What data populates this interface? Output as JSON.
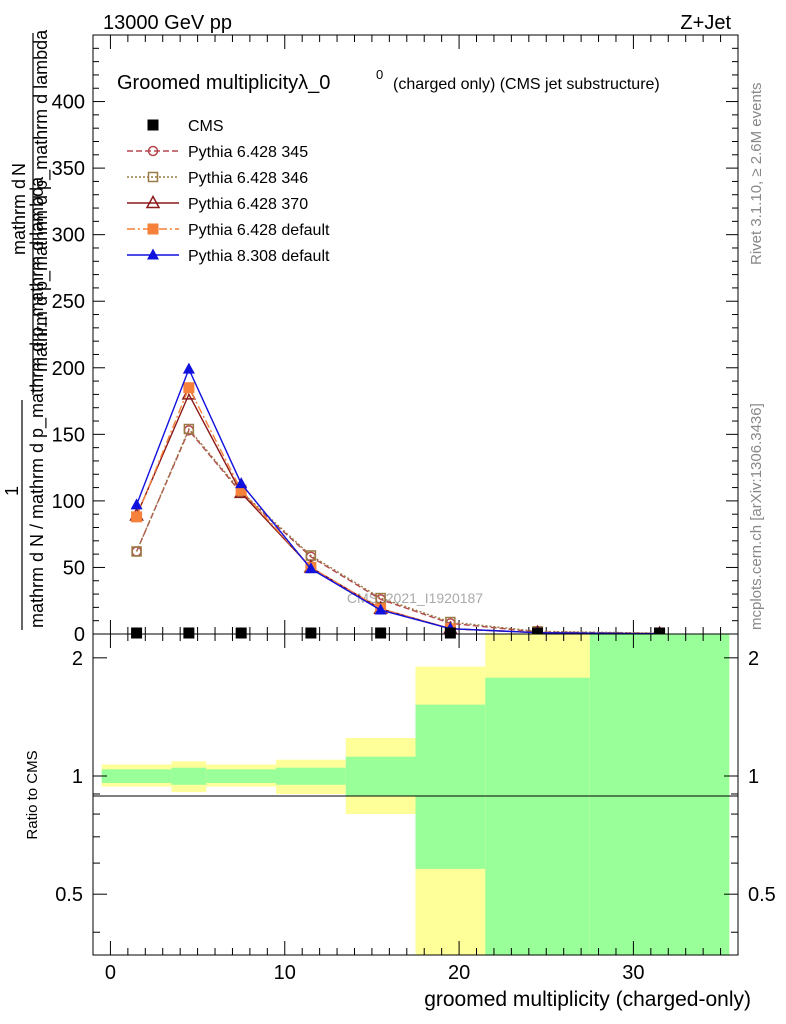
{
  "header": {
    "energy_label": "13000 GeV pp",
    "process_label": "Z+Jet"
  },
  "side_labels": {
    "rivet": "Rivet 3.1.10, ≥ 2.6M events",
    "mcplots": "mcplots.cern.ch [arXiv:1306.3436]"
  },
  "watermark": "CMS_2021_I1920187",
  "chart_data": [
    {
      "type": "line",
      "title_main": "Groomed multiplicityλ_0",
      "title_sup": "0",
      "title_sub": "(charged only) (CMS jet substructure)",
      "ylabel_parts": [
        "1",
        "mathrm d N / mathrm d p_mathrm d p_mathrm d lambda",
        "mathrm d",
        "N",
        "mathrm d p_mathrm d p_mathrm d lambda"
      ],
      "ylabel_top": "mathrm d",
      "ylabel_top_n": "N",
      "ylabel_top_rest": "mathrm d p_mathrm d p_mathrm d lambda",
      "ylabel_one": "1",
      "ylabel_bottom": "mathrm d N / mathrm d p_mathrm d p_mathrm d lambda",
      "xlim": [
        -1,
        36
      ],
      "ylim": [
        0,
        450
      ],
      "yticks": [
        0,
        50,
        100,
        150,
        200,
        250,
        300,
        350,
        400
      ],
      "x": [
        1.5,
        4.5,
        7.5,
        11.5,
        15.5,
        19.5,
        24.5,
        31.5
      ],
      "series": [
        {
          "name": "CMS",
          "color": "#000000",
          "marker": "square-filled",
          "line": "none",
          "values": [
            0.3,
            0.3,
            0.3,
            0.3,
            0.3,
            0.3,
            0.3,
            0.3
          ]
        },
        {
          "name": "Pythia 6.428 345",
          "color": "#b5474e",
          "marker": "circle-open",
          "line": "dashed",
          "values": [
            62,
            153,
            106,
            58,
            26,
            8,
            1.5,
            0.5
          ]
        },
        {
          "name": "Pythia 6.428 346",
          "color": "#9a7a45",
          "marker": "square-open",
          "line": "dotted",
          "values": [
            62,
            154,
            107,
            59,
            27,
            9,
            2,
            0.6
          ]
        },
        {
          "name": "Pythia 6.428 370",
          "color": "#8b1a1a",
          "marker": "triangle-open",
          "line": "solid",
          "values": [
            89,
            180,
            106,
            50,
            19,
            4,
            1,
            0.2
          ]
        },
        {
          "name": "Pythia 6.428 default",
          "color": "#f5813a",
          "marker": "square-filled",
          "line": "dashdot",
          "values": [
            88,
            185,
            108,
            50,
            19,
            4,
            1,
            0.2
          ]
        },
        {
          "name": "Pythia 8.308 default",
          "color": "#1111dd",
          "marker": "triangle-filled",
          "line": "solid",
          "values": [
            97,
            199,
            113,
            49,
            18,
            4,
            1,
            0.2
          ]
        }
      ]
    },
    {
      "type": "area",
      "ylabel": "Ratio to CMS",
      "xlabel": "groomed multiplicity (charged-only)",
      "xlim": [
        -1,
        36
      ],
      "ylim": [
        0.35,
        2.3
      ],
      "log_y": true,
      "yticks": [
        0.5,
        1,
        2
      ],
      "xticks": [
        0,
        10,
        20,
        30
      ],
      "bins": [
        {
          "lo": -0.5,
          "hi": 3.5,
          "yellow": [
            0.94,
            1.07
          ],
          "green": [
            0.96,
            1.04
          ]
        },
        {
          "lo": 3.5,
          "hi": 5.5,
          "yellow": [
            0.91,
            1.09
          ],
          "green": [
            0.95,
            1.05
          ]
        },
        {
          "lo": 5.5,
          "hi": 9.5,
          "yellow": [
            0.94,
            1.07
          ],
          "green": [
            0.96,
            1.04
          ]
        },
        {
          "lo": 9.5,
          "hi": 13.5,
          "yellow": [
            0.9,
            1.1
          ],
          "green": [
            0.95,
            1.05
          ]
        },
        {
          "lo": 13.5,
          "hi": 17.5,
          "yellow": [
            0.8,
            1.25
          ],
          "green": [
            0.89,
            1.12
          ]
        },
        {
          "lo": 17.5,
          "hi": 21.5,
          "yellow": [
            0.35,
            1.9
          ],
          "green": [
            0.58,
            1.52
          ]
        },
        {
          "lo": 21.5,
          "hi": 27.5,
          "yellow": [
            0.35,
            2.3
          ],
          "green": [
            0.35,
            1.78
          ]
        },
        {
          "lo": 27.5,
          "hi": 35.5,
          "yellow": [
            0.35,
            2.3
          ],
          "green": [
            0.35,
            2.3
          ]
        }
      ]
    }
  ]
}
